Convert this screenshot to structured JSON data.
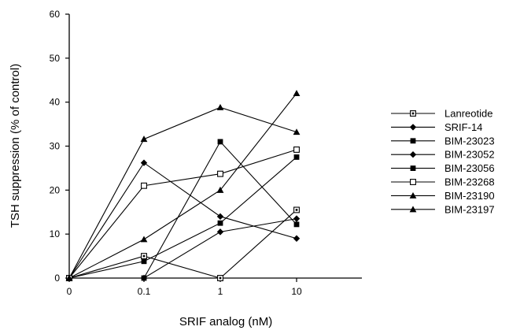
{
  "chart_data": {
    "type": "line",
    "title": "",
    "xlabel": "SRIF analog (nM)",
    "ylabel": "TSH suppression (% of control)",
    "ylim": [
      0,
      60
    ],
    "yticks": [
      "0",
      "10",
      "20",
      "30",
      "40",
      "50",
      "60"
    ],
    "categories": [
      "0",
      "0.1",
      "1",
      "10"
    ],
    "grid": false,
    "legend_position": "right",
    "series": [
      {
        "name": "Lanreotide",
        "marker": "square-dot",
        "values": [
          0,
          5,
          0,
          15.5
        ]
      },
      {
        "name": "SRIF-14",
        "marker": "diamond-filled",
        "values": [
          0,
          0,
          10.5,
          13.5
        ]
      },
      {
        "name": "BIM-23023",
        "marker": "square-filled",
        "values": [
          0,
          0,
          31,
          12.2
        ]
      },
      {
        "name": "BIM-23052",
        "marker": "diamond-filled",
        "values": [
          0,
          26.2,
          14,
          9
        ]
      },
      {
        "name": "BIM-23056",
        "marker": "square-filled",
        "values": [
          0,
          3.8,
          12.5,
          27.5
        ]
      },
      {
        "name": "BIM-23268",
        "marker": "square-open",
        "values": [
          0,
          21,
          23.7,
          29.2
        ]
      },
      {
        "name": "BIM-23190",
        "marker": "triangle-filled",
        "values": [
          0,
          31.6,
          38.8,
          33.2
        ]
      },
      {
        "name": "BIM-23197",
        "marker": "triangle-filled",
        "values": [
          0,
          8.8,
          20,
          42
        ]
      }
    ]
  }
}
